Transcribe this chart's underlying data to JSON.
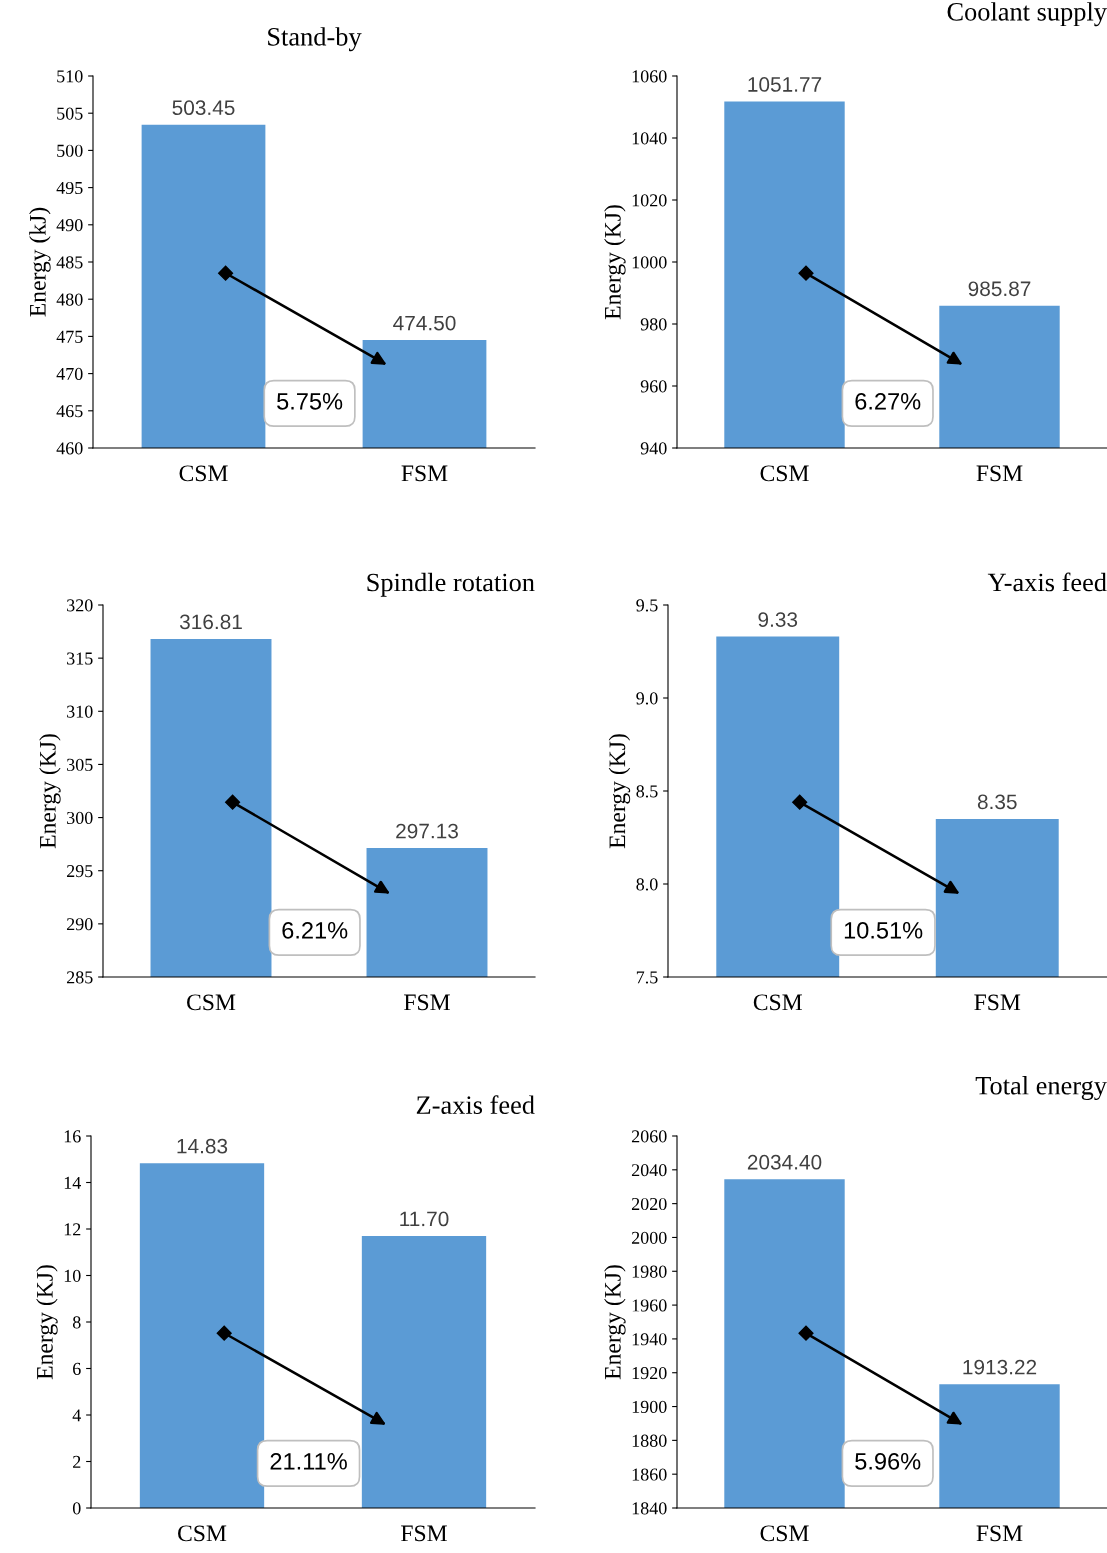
{
  "chart_data": [
    {
      "type": "bar",
      "title": "Stand-by",
      "ylabel": "Energy (kJ)",
      "categories": [
        "CSM",
        "FSM"
      ],
      "values": [
        503.45,
        474.5
      ],
      "value_labels": [
        "503.45",
        "474.50"
      ],
      "color": "#5b9bd5",
      "ylim": [
        460,
        510
      ],
      "yticks": [
        460,
        465,
        470,
        475,
        480,
        485,
        490,
        495,
        500,
        505,
        510
      ],
      "grid": false,
      "legend": false,
      "annotations": [
        "5.75%"
      ]
    },
    {
      "type": "bar",
      "title": "Coolant supply",
      "ylabel": "Energy (KJ)",
      "categories": [
        "CSM",
        "FSM"
      ],
      "values": [
        1051.77,
        985.87
      ],
      "value_labels": [
        "1051.77",
        "985.87"
      ],
      "color": "#5b9bd5",
      "ylim": [
        940,
        1060
      ],
      "yticks": [
        940,
        960,
        980,
        1000,
        1020,
        1040,
        1060
      ],
      "grid": false,
      "legend": false,
      "annotations": [
        "6.27%"
      ]
    },
    {
      "type": "bar",
      "title": "Spindle rotation",
      "ylabel": "Energy (KJ)",
      "categories": [
        "CSM",
        "FSM"
      ],
      "values": [
        316.81,
        297.13
      ],
      "value_labels": [
        "316.81",
        "297.13"
      ],
      "color": "#5b9bd5",
      "ylim": [
        285,
        320
      ],
      "yticks": [
        285,
        290,
        295,
        300,
        305,
        310,
        315,
        320
      ],
      "grid": false,
      "legend": false,
      "annotations": [
        "6.21%"
      ]
    },
    {
      "type": "bar",
      "title": "Y-axis feed",
      "ylabel": "Energy (KJ)",
      "categories": [
        "CSM",
        "FSM"
      ],
      "values": [
        9.33,
        8.35
      ],
      "value_labels": [
        "9.33",
        "8.35"
      ],
      "color": "#5b9bd5",
      "ylim": [
        7.5,
        9.5
      ],
      "yticks": [
        7.5,
        {
          "value": 8,
          "label": "8.0"
        },
        8.5,
        {
          "value": 9,
          "label": "9.0"
        },
        9.5
      ],
      "grid": false,
      "legend": false,
      "annotations": [
        "10.51%"
      ]
    },
    {
      "type": "bar",
      "title": "Z-axis feed",
      "ylabel": "Energy (KJ)",
      "categories": [
        "CSM",
        "FSM"
      ],
      "values": [
        14.83,
        11.7
      ],
      "value_labels": [
        "14.83",
        "11.70"
      ],
      "color": "#5b9bd5",
      "ylim": [
        0,
        16
      ],
      "yticks": [
        0,
        2,
        4,
        6,
        8,
        10,
        12,
        14,
        16
      ],
      "grid": false,
      "legend": false,
      "annotations": [
        "21.11%"
      ]
    },
    {
      "type": "bar",
      "title": "Total energy",
      "ylabel": "Energy (KJ)",
      "categories": [
        "CSM",
        "FSM"
      ],
      "values": [
        2034.4,
        1913.22
      ],
      "value_labels": [
        "2034.40",
        "1913.22"
      ],
      "color": "#5b9bd5",
      "ylim": [
        1840,
        2060
      ],
      "yticks": [
        1840,
        1860,
        1880,
        1900,
        1920,
        1940,
        1960,
        1980,
        2000,
        2020,
        2040,
        2060
      ],
      "grid": false,
      "legend": false,
      "annotations": [
        "5.96%"
      ]
    }
  ]
}
